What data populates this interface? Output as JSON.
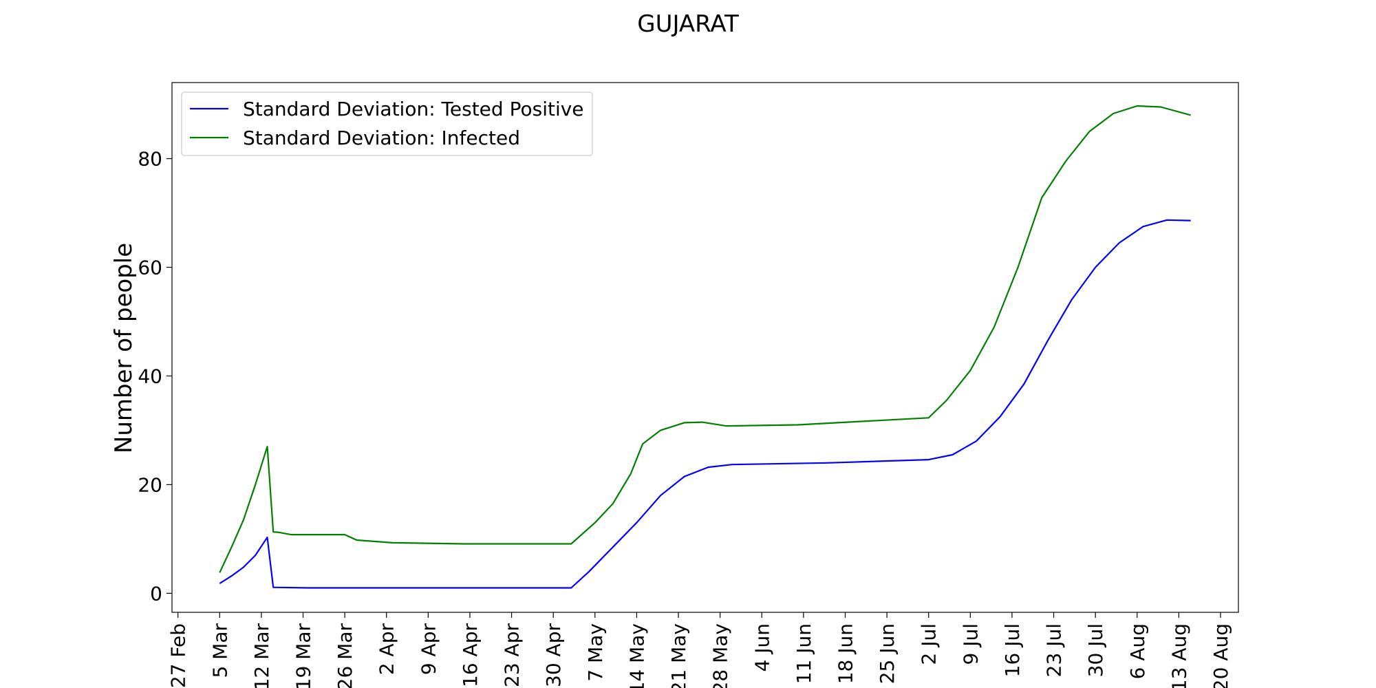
{
  "chart_data": {
    "type": "line",
    "title": "GUJARAT",
    "xlabel": "",
    "ylabel": "Number of people",
    "x_tick_labels": [
      "27 Feb",
      "5 Mar",
      "12 Mar",
      "19 Mar",
      "26 Mar",
      "2 Apr",
      "9 Apr",
      "16 Apr",
      "23 Apr",
      "30 Apr",
      "7 May",
      "14 May",
      "21 May",
      "28 May",
      "4 Jun",
      "11 Jun",
      "18 Jun",
      "25 Jun",
      "2 Jul",
      "9 Jul",
      "16 Jul",
      "23 Jul",
      "30 Jul",
      "6 Aug",
      "13 Aug",
      "20 Aug"
    ],
    "y_ticks": [
      0,
      20,
      40,
      60,
      80
    ],
    "xlim": [
      "2020-02-26",
      "2020-08-23"
    ],
    "ylim": [
      -3.5,
      94
    ],
    "grid": false,
    "legend_position": "upper-left",
    "series": [
      {
        "name": "Standard Deviation: Tested Positive",
        "color": "#0000ff",
        "points": [
          [
            "2020-03-05",
            1.8
          ],
          [
            "2020-03-07",
            3.2
          ],
          [
            "2020-03-09",
            4.8
          ],
          [
            "2020-03-11",
            7.0
          ],
          [
            "2020-03-13",
            10.3
          ],
          [
            "2020-03-14",
            1.1
          ],
          [
            "2020-03-20",
            1.0
          ],
          [
            "2020-04-10",
            1.0
          ],
          [
            "2020-05-03",
            1.0
          ],
          [
            "2020-05-06",
            4.0
          ],
          [
            "2020-05-10",
            8.5
          ],
          [
            "2020-05-14",
            13.0
          ],
          [
            "2020-05-18",
            18.0
          ],
          [
            "2020-05-22",
            21.5
          ],
          [
            "2020-05-26",
            23.2
          ],
          [
            "2020-05-30",
            23.7
          ],
          [
            "2020-06-15",
            24.0
          ],
          [
            "2020-07-02",
            24.6
          ],
          [
            "2020-07-06",
            25.5
          ],
          [
            "2020-07-10",
            28.0
          ],
          [
            "2020-07-14",
            32.5
          ],
          [
            "2020-07-18",
            38.5
          ],
          [
            "2020-07-22",
            46.5
          ],
          [
            "2020-07-26",
            54.0
          ],
          [
            "2020-07-30",
            60.0
          ],
          [
            "2020-08-03",
            64.5
          ],
          [
            "2020-08-07",
            67.5
          ],
          [
            "2020-08-11",
            68.7
          ],
          [
            "2020-08-15",
            68.6
          ]
        ]
      },
      {
        "name": "Standard Deviation: Infected",
        "color": "#008000",
        "points": [
          [
            "2020-03-05",
            3.8
          ],
          [
            "2020-03-07",
            8.5
          ],
          [
            "2020-03-09",
            13.5
          ],
          [
            "2020-03-11",
            20.0
          ],
          [
            "2020-03-13",
            27.0
          ],
          [
            "2020-03-14",
            11.3
          ],
          [
            "2020-03-15",
            11.2
          ],
          [
            "2020-03-17",
            10.8
          ],
          [
            "2020-03-26",
            10.8
          ],
          [
            "2020-03-28",
            9.8
          ],
          [
            "2020-04-03",
            9.3
          ],
          [
            "2020-04-15",
            9.1
          ],
          [
            "2020-05-03",
            9.1
          ],
          [
            "2020-05-07",
            13.0
          ],
          [
            "2020-05-10",
            16.5
          ],
          [
            "2020-05-13",
            22.0
          ],
          [
            "2020-05-15",
            27.5
          ],
          [
            "2020-05-18",
            30.0
          ],
          [
            "2020-05-22",
            31.4
          ],
          [
            "2020-05-25",
            31.5
          ],
          [
            "2020-05-29",
            30.8
          ],
          [
            "2020-06-10",
            31.0
          ],
          [
            "2020-07-02",
            32.3
          ],
          [
            "2020-07-05",
            35.5
          ],
          [
            "2020-07-09",
            41.0
          ],
          [
            "2020-07-13",
            49.0
          ],
          [
            "2020-07-17",
            60.0
          ],
          [
            "2020-07-21",
            72.8
          ],
          [
            "2020-07-25",
            79.5
          ],
          [
            "2020-07-29",
            85.0
          ],
          [
            "2020-08-02",
            88.3
          ],
          [
            "2020-08-06",
            89.7
          ],
          [
            "2020-08-10",
            89.5
          ],
          [
            "2020-08-15",
            88.0
          ]
        ]
      }
    ]
  }
}
